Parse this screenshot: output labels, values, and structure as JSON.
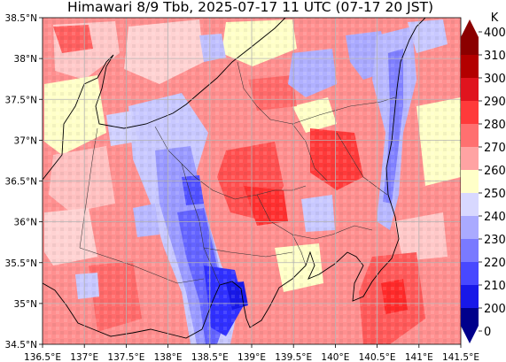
{
  "title": "Himawari 8/9 Tbb, 2025-07-17 11 UTC (07-17 20 JST)",
  "map": {
    "lon_range": [
      136.5,
      141.5
    ],
    "lat_range": [
      34.5,
      38.5
    ],
    "lon_ticks": [
      "136.5°E",
      "137°E",
      "137.5°E",
      "138°E",
      "138.5°E",
      "139°E",
      "139.5°E",
      "140°E",
      "140.5°E",
      "141°E",
      "141.5°E"
    ],
    "lat_ticks": [
      "34.5°N",
      "35°N",
      "35.5°N",
      "36°N",
      "36.5°N",
      "37°N",
      "37.5°N",
      "38°N",
      "38.5°N"
    ],
    "gridlines": true,
    "variable": "brightness temperature",
    "warm_areas_shown": [
      "central Fukushima/Tochigi (approx. 139.5–140.5°E, 36.3–37.2°N)",
      "southern Boso / offshore (approx. 140.3–141°E, 34.5–35.3°N)",
      "Noto / Sea of Japan side"
    ],
    "cold_areas_shown": [
      "Izu–Fuji–Kofu band (approx. 138.2–139°E, 34.6–36.6°N)",
      "eastern coast band (approx. 140.6–141°E, 36–38.3°N)",
      "Niigata inland (approx. 139–139.6°E, 37.2–37.6°N)"
    ]
  },
  "colorbar": {
    "unit": "K",
    "labels": [
      "400",
      "310",
      "300",
      "290",
      "280",
      "270",
      "260",
      "250",
      "240",
      "230",
      "220",
      "210",
      "200",
      "0"
    ],
    "colors": [
      "#8b0000",
      "#b30000",
      "#e0141e",
      "#ff3a3a",
      "#ff7070",
      "#ffa3a3",
      "#ffd0d0",
      "#ffffc8",
      "#d8d8ff",
      "#aaaaff",
      "#7a7aff",
      "#4848ff",
      "#1818e8",
      "#00008b"
    ],
    "extend": "both"
  }
}
